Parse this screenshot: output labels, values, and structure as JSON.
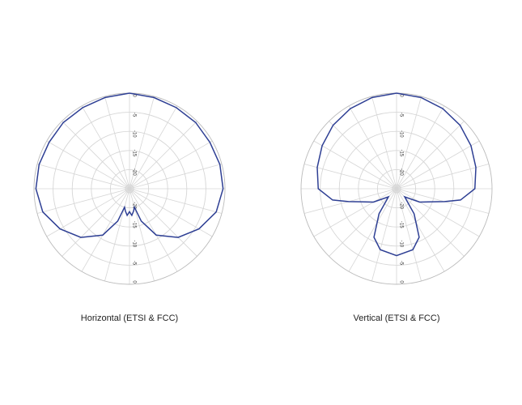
{
  "chart_data": [
    {
      "type": "polar",
      "title": "Horizontal (ETSI & FCC)",
      "theta": [
        0,
        15,
        30,
        45,
        60,
        75,
        90,
        105,
        120,
        135,
        150,
        160,
        165,
        170,
        175,
        180,
        185,
        190,
        195,
        200,
        210,
        225,
        240,
        255,
        270,
        285,
        300,
        315,
        330,
        345,
        360
      ],
      "series": [
        {
          "color": "#2e3f94",
          "values": [
            0,
            -0.3,
            -0.5,
            -0.5,
            -0.7,
            -0.5,
            -0.5,
            -1.5,
            -4,
            -7,
            -11,
            -16,
            -20,
            -19,
            -18,
            -19,
            -18,
            -19,
            -20,
            -16,
            -11,
            -7,
            -4,
            -1.5,
            -0.5,
            -0.5,
            -0.7,
            -0.5,
            -0.5,
            -0.3,
            0
          ]
        }
      ],
      "rlim": [
        -25,
        0
      ],
      "rticks": [
        0,
        -5,
        -10,
        -15,
        -20
      ],
      "grid": true
    },
    {
      "type": "polar",
      "title": "Vertical (ETSI & FCC)",
      "theta": [
        0,
        15,
        30,
        45,
        60,
        75,
        90,
        100,
        105,
        110,
        120,
        135,
        145,
        155,
        165,
        180,
        195,
        205,
        215,
        225,
        240,
        250,
        255,
        260,
        270,
        285,
        300,
        315,
        330,
        345,
        360
      ],
      "series": [
        {
          "color": "#2e3f94",
          "values": [
            0,
            -0.3,
            -0.8,
            -1.5,
            -2.5,
            -3.5,
            -4.5,
            -8,
            -12,
            -15,
            -18,
            -22,
            -17,
            -11,
            -8.5,
            -7.5,
            -8.5,
            -11,
            -17,
            -22,
            -18,
            -15,
            -12,
            -8,
            -4.5,
            -3.5,
            -2.5,
            -1.5,
            -0.8,
            -0.3,
            0
          ]
        }
      ],
      "rlim": [
        -25,
        0
      ],
      "rticks": [
        0,
        -5,
        -10,
        -15,
        -20
      ],
      "grid": true
    }
  ]
}
